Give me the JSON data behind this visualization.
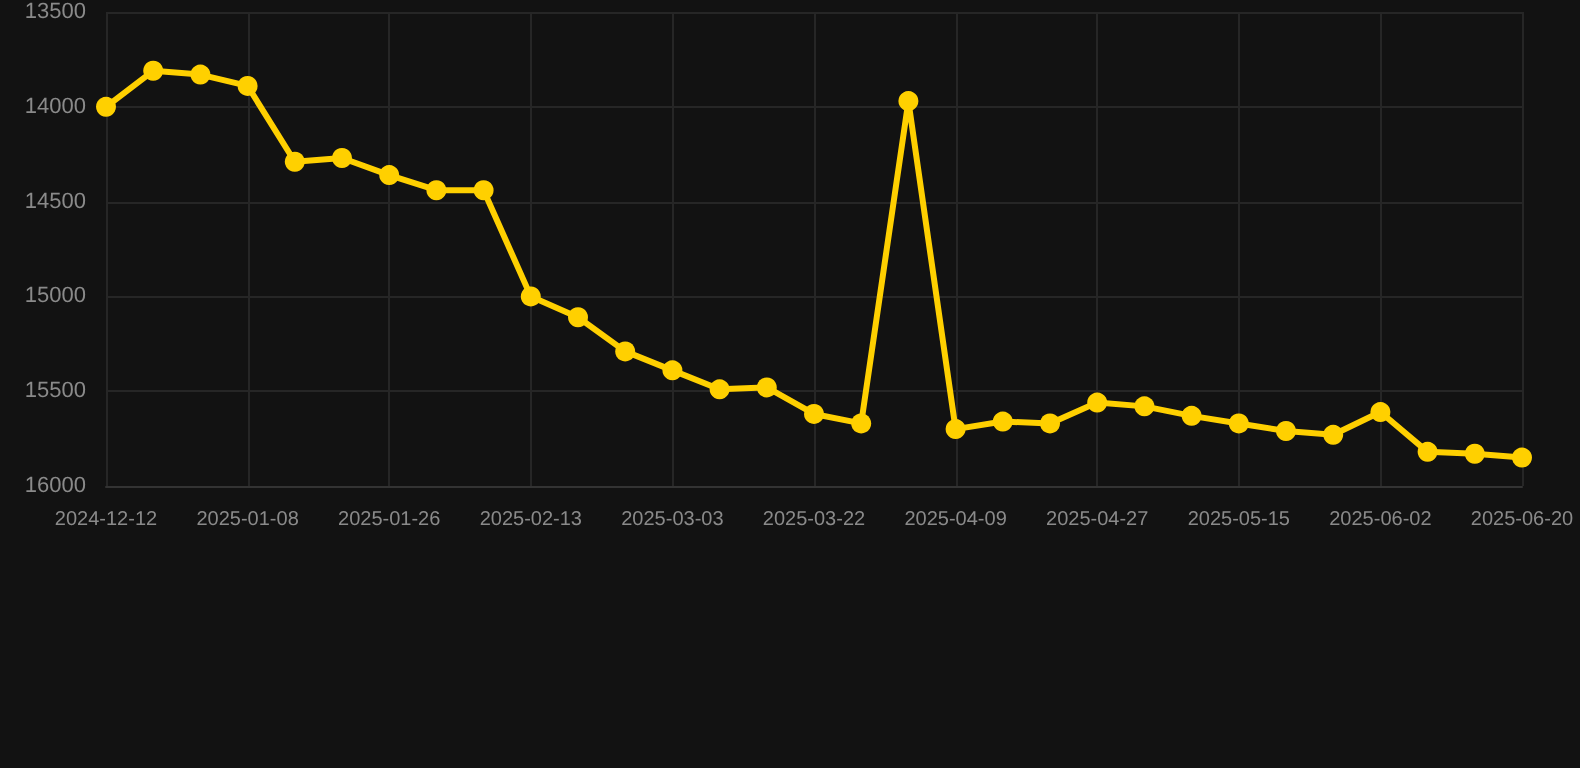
{
  "chart_data": {
    "type": "line",
    "categories": [
      "2024-12-12",
      null,
      null,
      "2025-01-08",
      null,
      null,
      "2025-01-26",
      null,
      null,
      "2025-02-13",
      null,
      null,
      "2025-03-03",
      null,
      null,
      "2025-03-22",
      null,
      null,
      "2025-04-09",
      null,
      null,
      "2025-04-27",
      null,
      null,
      "2025-05-15",
      null,
      null,
      "2025-06-02",
      null,
      null,
      "2025-06-20"
    ],
    "series": [
      {
        "color": "#ffd000",
        "values": [
          14000,
          13810,
          13830,
          13890,
          14290,
          14270,
          14360,
          14440,
          14440,
          15000,
          15110,
          15290,
          15390,
          15490,
          15480,
          15620,
          15670,
          13970,
          15700,
          15660,
          15670,
          15560,
          15580,
          15630,
          15670,
          15710,
          15730,
          15610,
          15820,
          15830,
          15850
        ]
      }
    ],
    "ylim": [
      16000,
      13500
    ],
    "yticks": [
      13500,
      14000,
      14500,
      15000,
      15500,
      16000
    ],
    "grid": true,
    "marker": "circle",
    "line_style": "solid"
  }
}
